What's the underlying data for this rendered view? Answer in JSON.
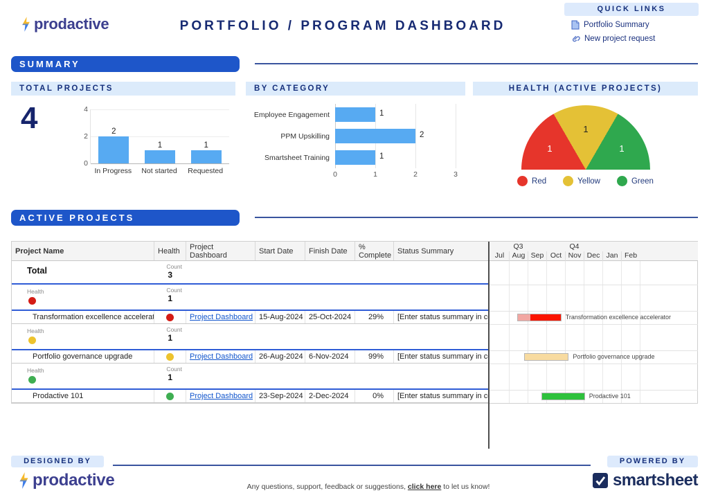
{
  "brand": {
    "logo_text": "prodactive"
  },
  "header": {
    "title": "PORTFOLIO / PROGRAM DASHBOARD",
    "quick_links_title": "QUICK LINKS",
    "quick_links": [
      {
        "label": "Portfolio Summary",
        "icon": "document-icon"
      },
      {
        "label": "New project request",
        "icon": "link-icon"
      }
    ]
  },
  "summary_section": {
    "title": "SUMMARY",
    "total_projects_title": "TOTAL PROJECTS",
    "total_projects_value": "4",
    "by_category_title": "BY CATEGORY",
    "health_title": "HEALTH (ACTIVE PROJECTS)"
  },
  "chart_data": [
    {
      "id": "total_projects_by_status",
      "type": "bar",
      "title": "TOTAL PROJECTS",
      "categories": [
        "In Progress",
        "Not started",
        "Requested"
      ],
      "values": [
        2,
        1,
        1
      ],
      "yticks": [
        0,
        2,
        4
      ],
      "ylim": [
        0,
        4
      ],
      "bar_color": "#57aaf2",
      "grid": true,
      "legend_position": "none"
    },
    {
      "id": "by_category",
      "type": "bar-horizontal",
      "title": "BY CATEGORY",
      "categories": [
        "Employee Engagement",
        "PPM Upskilling",
        "Smartsheet Training"
      ],
      "values": [
        1,
        2,
        1
      ],
      "xticks": [
        0,
        1,
        2,
        3
      ],
      "xlim": [
        0,
        3
      ],
      "bar_color": "#57aaf2",
      "grid": true,
      "legend_position": "none"
    },
    {
      "id": "health_active_projects",
      "type": "pie",
      "shape": "semicircle",
      "title": "HEALTH (ACTIVE PROJECTS)",
      "slices": [
        {
          "label": "Red",
          "value": 1,
          "color": "#e6352b",
          "text_color": "#ffffff"
        },
        {
          "label": "Yellow",
          "value": 1,
          "color": "#e4c136",
          "text_color": "#222222"
        },
        {
          "label": "Green",
          "value": 1,
          "color": "#2fa84e",
          "text_color": "#ffffff"
        }
      ],
      "legend_position": "bottom"
    }
  ],
  "active_section": {
    "title": "ACTIVE PROJECTS"
  },
  "table": {
    "columns": [
      "Project Name",
      "Health",
      "Project Dashboard",
      "Start Date",
      "Finish Date",
      "% Complete",
      "Status Summary"
    ],
    "count_label": "Count",
    "group_label": "Health",
    "health_colors": {
      "red": "#d41c15",
      "yellow": "#edc32e",
      "green": "#3fae52"
    },
    "rows": [
      {
        "type": "total",
        "label": "Total",
        "count": "3"
      },
      {
        "type": "group",
        "health": "red",
        "count": "1"
      },
      {
        "type": "project",
        "name": "Transformation excellence accelerator",
        "health": "red",
        "link": "Project Dashboard",
        "start": "15-Aug-2024",
        "finish": "25-Oct-2024",
        "pct": "29%",
        "status": "[Enter status summary in comments]"
      },
      {
        "type": "group",
        "health": "yellow",
        "count": "1"
      },
      {
        "type": "project",
        "name": "Portfolio governance upgrade",
        "health": "yellow",
        "link": "Project Dashboard",
        "start": "26-Aug-2024",
        "finish": "6-Nov-2024",
        "pct": "99%",
        "status": "[Enter status summary in comments]"
      },
      {
        "type": "group",
        "health": "green",
        "count": "1"
      },
      {
        "type": "project",
        "name": "Prodactive 101",
        "health": "green",
        "link": "Project Dashboard",
        "start": "23-Sep-2024",
        "finish": "2-Dec-2024",
        "pct": "0%",
        "status": "[Enter status summary in comments]"
      }
    ]
  },
  "gantt": {
    "months": [
      "Jul",
      "Aug",
      "Sep",
      "Oct",
      "Nov",
      "Dec",
      "Jan",
      "Feb"
    ],
    "quarters": [
      {
        "label": "Q3",
        "start": 0,
        "span": 3
      },
      {
        "label": "Q4",
        "start": 3,
        "span": 3
      }
    ],
    "bar_colors": {
      "red": {
        "base": "#fb1400",
        "light": "#f2a7a2"
      },
      "yellow": {
        "base": "#f0c04a",
        "light": "#f8dba0"
      },
      "green": {
        "base": "#2ec13c",
        "light": "#bfe8c0"
      }
    }
  },
  "footer": {
    "designed_by": "DESIGNED BY",
    "powered_by": "POWERED BY",
    "smartsheet_label": "smartsheet",
    "note_prefix": "Any questions, support, feedback or suggestions, ",
    "note_link": "click here",
    "note_suffix": " to let us know!"
  }
}
